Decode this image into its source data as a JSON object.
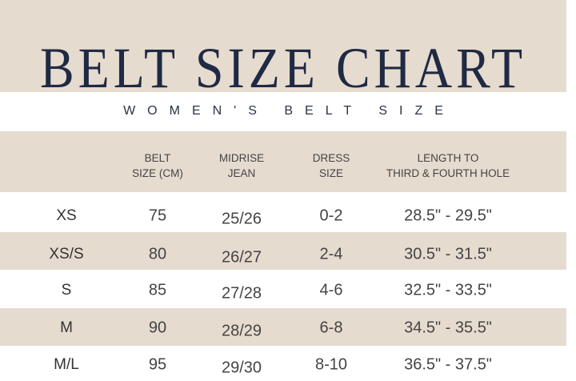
{
  "title": "BELT SIZE CHART",
  "subtitle": "WOMEN'S BELT SIZE",
  "colors": {
    "band": "#e6dbcf",
    "title": "#1f2a44",
    "text": "#444444"
  },
  "headers": [
    {
      "line1": "BELT",
      "line2": "SIZE (CM)"
    },
    {
      "line1": "MIDRISE",
      "line2": "JEAN"
    },
    {
      "line1": "DRESS",
      "line2": "SIZE"
    },
    {
      "line1": "LENGTH TO",
      "line2": "THIRD & FOURTH HOLE"
    }
  ],
  "rows": [
    {
      "size": "XS",
      "belt": "75",
      "jean": "25/26",
      "dress": "0-2",
      "length": "28.5\" - 29.5\""
    },
    {
      "size": "XS/S",
      "belt": "80",
      "jean": "26/27",
      "dress": "2-4",
      "length": "30.5\" - 31.5\""
    },
    {
      "size": "S",
      "belt": "85",
      "jean": "27/28",
      "dress": "4-6",
      "length": "32.5\" - 33.5\""
    },
    {
      "size": "M",
      "belt": "90",
      "jean": "28/29",
      "dress": "6-8",
      "length": "34.5\" - 35.5\""
    },
    {
      "size": "M/L",
      "belt": "95",
      "jean": "29/30",
      "dress": "8-10",
      "length": "36.5\" - 37.5\""
    }
  ]
}
